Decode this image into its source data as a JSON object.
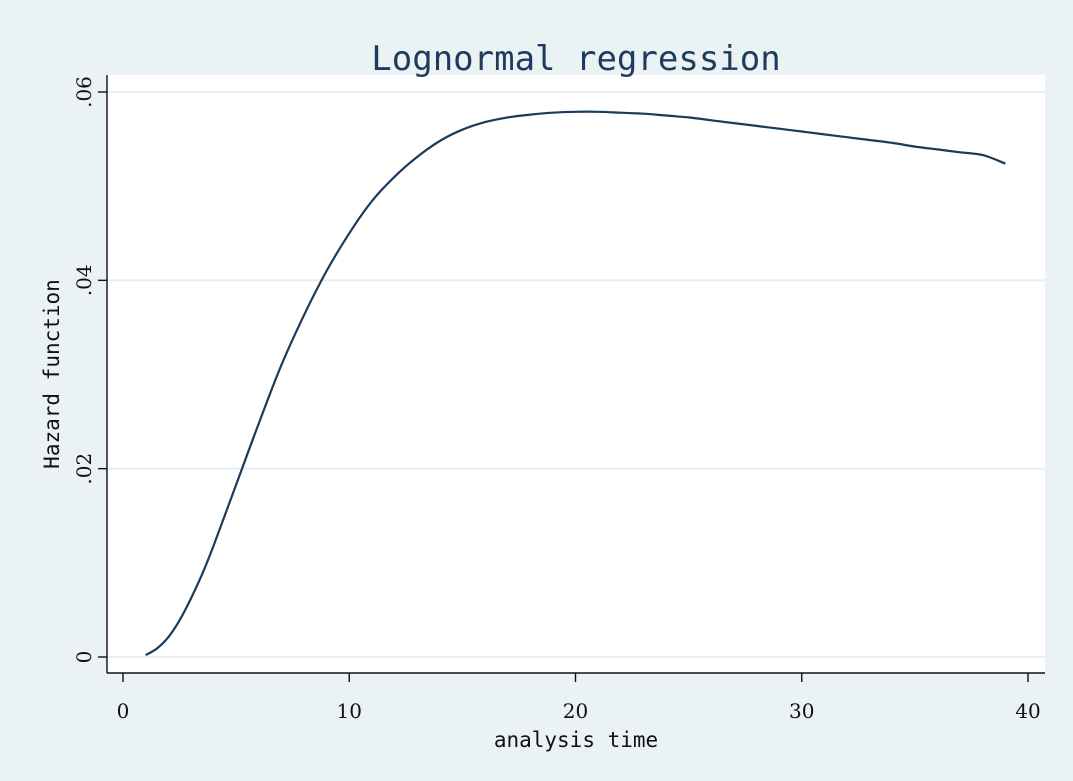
{
  "chart_data": {
    "type": "line",
    "title": "Lognormal regression",
    "xlabel": "analysis time",
    "ylabel": "Hazard function",
    "xlim": [
      0,
      41
    ],
    "ylim": [
      0,
      0.062
    ],
    "x_ticks": [
      0,
      10,
      20,
      30,
      40
    ],
    "x_tick_labels": [
      "0",
      "10",
      "20",
      "30",
      "40"
    ],
    "y_ticks": [
      0,
      0.02,
      0.04,
      0.06
    ],
    "y_tick_labels": [
      "0",
      ".02",
      ".04",
      ".06"
    ],
    "grid": true,
    "legend": "none",
    "colors": {
      "line": "#1a3b5a",
      "plot_bg": "#ffffff",
      "outer_bg": "#eaf2f3",
      "grid": "#e8eef0"
    },
    "series": [
      {
        "x": [
          1,
          1.5,
          2,
          2.5,
          3,
          3.5,
          4,
          5,
          6,
          7,
          8,
          9,
          10,
          11,
          12,
          13,
          14,
          15,
          16,
          17,
          18,
          19,
          20,
          21,
          22,
          23,
          24,
          25,
          26,
          27,
          28,
          29,
          30,
          31,
          32,
          33,
          34,
          35,
          36,
          37,
          38,
          39
        ],
        "y": [
          0.0002,
          0.0009,
          0.0021,
          0.0039,
          0.0062,
          0.0088,
          0.0118,
          0.0183,
          0.0248,
          0.031,
          0.0363,
          0.041,
          0.045,
          0.0484,
          0.051,
          0.0531,
          0.0548,
          0.056,
          0.0568,
          0.0573,
          0.0576,
          0.0578,
          0.0579,
          0.0579,
          0.0578,
          0.0577,
          0.0575,
          0.0573,
          0.057,
          0.0567,
          0.0564,
          0.0561,
          0.0558,
          0.0555,
          0.0552,
          0.0549,
          0.0546,
          0.0542,
          0.0539,
          0.0536,
          0.0533,
          0.0524
        ]
      }
    ]
  }
}
